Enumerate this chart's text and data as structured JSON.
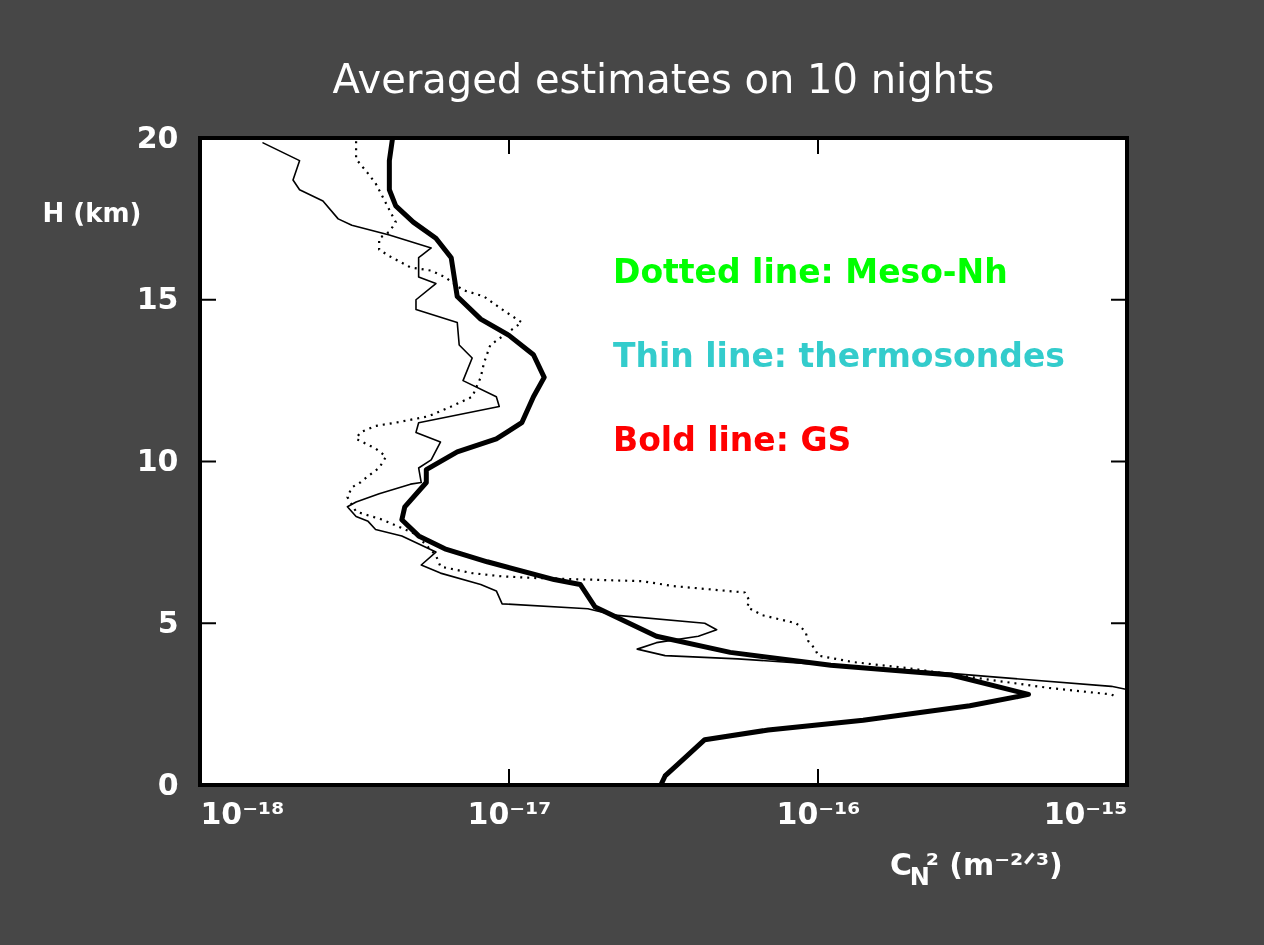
{
  "chart_data": {
    "type": "line",
    "title": "Averaged estimates on 10 nights",
    "xlabel": "C$_{N}$² (m⁻²ᐟ³)",
    "ylabel": "H (km)",
    "log": "x",
    "grid": false,
    "xlim": [
      1e-18,
      1e-15
    ],
    "xticks": [
      {
        "value": 1e-18,
        "label": "10⁻¹⁸"
      },
      {
        "value": 1e-17,
        "label": "10⁻¹⁷"
      },
      {
        "value": 1e-16,
        "label": "10⁻¹⁶"
      },
      {
        "value": 1e-15,
        "label": "10⁻¹⁵"
      }
    ],
    "ylim": [
      0,
      20
    ],
    "yticks": [
      0,
      5,
      10,
      15,
      20
    ],
    "annotations": [
      "Dotted line: Meso-Nh",
      "Thin line: thermosondes",
      "Bold line: GS"
    ],
    "series": [
      {
        "color": "#000000",
        "line_style": "dotted",
        "x": [
          3.2e-18,
          3.2e-18,
          3.5e-18,
          3.7e-18,
          4.3e-18,
          4.1e-18,
          3.8e-18,
          3.8e-18,
          4.1e-18,
          4.8e-18,
          5.6e-18,
          6.2e-18,
          7.1e-18,
          8.3e-18,
          9.5e-18,
          1.1e-17,
          8.7e-18,
          8.3e-18,
          8.1e-18,
          7.6e-18,
          6.5e-18,
          5.5e-18,
          4.3e-18,
          3.7e-18,
          3.3e-18,
          3.2e-18,
          3.7e-18,
          4e-18,
          3.8e-18,
          3.5e-18,
          3.3e-18,
          3.1e-18,
          3e-18,
          3.2e-18,
          3.6e-18,
          3.9e-18,
          5e-18,
          5.8e-18,
          6e-18,
          7.6e-18,
          9.5e-18,
          1.2e-17,
          1.8e-17,
          2.7e-17,
          3.4e-17,
          5.8e-17,
          6e-17,
          5.9e-17,
          6.6e-17,
          8.5e-17,
          9.1e-17,
          9.3e-17,
          9.8e-17,
          1e-16,
          1.3e-16,
          2e-16,
          3.6e-16,
          5.6e-16,
          8.9e-16,
          9.1e-16
        ],
        "values": [
          19.9,
          19.35,
          18.9,
          18.6,
          17.4,
          17.1,
          16.9,
          16.55,
          16.35,
          16.0,
          15.9,
          15.7,
          15.3,
          15.1,
          14.7,
          14.3,
          13.6,
          13.05,
          12.6,
          12.0,
          11.7,
          11.4,
          11.2,
          11.1,
          10.9,
          10.7,
          10.4,
          10.15,
          9.8,
          9.55,
          9.35,
          9.2,
          8.9,
          8.45,
          8.3,
          8.2,
          7.75,
          7.1,
          6.75,
          6.55,
          6.45,
          6.4,
          6.35,
          6.3,
          6.15,
          5.95,
          5.7,
          5.5,
          5.25,
          5.0,
          4.75,
          4.45,
          4.2,
          4.0,
          3.8,
          3.6,
          3.25,
          3.0,
          2.8,
          2.75
        ]
      },
      {
        "color": "#000000",
        "line_style": "solid",
        "x": [
          1.6e-18,
          2.1e-18,
          2e-18,
          2.1e-18,
          2.5e-18,
          2.8e-18,
          3.1e-18,
          4.1e-18,
          5.6e-18,
          5.1e-18,
          5.1e-18,
          5.8e-18,
          5e-18,
          5e-18,
          6.8e-18,
          6.9e-18,
          7.6e-18,
          7.1e-18,
          9.1e-18,
          9.3e-18,
          5.1e-18,
          5e-18,
          6e-18,
          5.6e-18,
          5.1e-18,
          5.2e-18,
          4.8e-18,
          3.8e-18,
          3.2e-18,
          3e-18,
          3.2e-18,
          3.5e-18,
          3.7e-18,
          4.5e-18,
          5.8e-18,
          5.2e-18,
          6e-18,
          8.1e-18,
          9.1e-18,
          9.5e-18,
          1.8e-17,
          2.2e-17,
          4.3e-17,
          4.7e-17,
          4.1e-17,
          3e-17,
          2.6e-17,
          3.2e-17,
          5.5e-17,
          9.3e-17,
          2e-16,
          3.6e-16,
          8.9e-16,
          1e-15
        ],
        "values": [
          19.85,
          19.3,
          18.7,
          18.4,
          18.05,
          17.5,
          17.3,
          17.0,
          16.6,
          16.3,
          15.7,
          15.5,
          15.0,
          14.7,
          14.3,
          13.6,
          13.2,
          12.5,
          12.0,
          11.7,
          11.2,
          10.9,
          10.6,
          10.05,
          9.8,
          9.35,
          9.3,
          9.0,
          8.75,
          8.6,
          8.3,
          8.15,
          7.9,
          7.7,
          7.2,
          6.8,
          6.55,
          6.2,
          6.0,
          5.6,
          5.45,
          5.25,
          5.0,
          4.8,
          4.6,
          4.4,
          4.2,
          4.0,
          3.9,
          3.75,
          3.55,
          3.35,
          3.05,
          2.95
        ]
      },
      {
        "color": "#000000",
        "line_style": "solid",
        "x": [
          4.2e-18,
          4.1e-18,
          4.1e-18,
          4.3e-18,
          4.9e-18,
          5.8e-18,
          6.5e-18,
          6.8e-18,
          8.1e-18,
          1e-17,
          1.2e-17,
          1.3e-17,
          1.2e-17,
          1.1e-17,
          9.1e-18,
          6.8e-18,
          5.4e-18,
          5.4e-18,
          4.6e-18,
          4.5e-18,
          5.1e-18,
          6.2e-18,
          8.5e-18,
          1.4e-17,
          1.7e-17,
          1.9e-17,
          3e-17,
          5.2e-17,
          1.1e-16,
          2.7e-16,
          4.8e-16,
          3.1e-16,
          1.4e-16,
          6.9e-17,
          4.3e-17,
          3.2e-17,
          3.1e-17
        ],
        "values": [
          20,
          19.3,
          18.4,
          17.9,
          17.4,
          16.9,
          16.3,
          15.1,
          14.4,
          13.9,
          13.3,
          12.6,
          12.0,
          11.2,
          10.7,
          10.3,
          9.75,
          9.35,
          8.6,
          8.2,
          7.7,
          7.3,
          6.9,
          6.35,
          6.2,
          5.5,
          4.6,
          4.1,
          3.7,
          3.4,
          2.8,
          2.45,
          2.0,
          1.7,
          1.4,
          0.28,
          0
        ]
      }
    ]
  }
}
